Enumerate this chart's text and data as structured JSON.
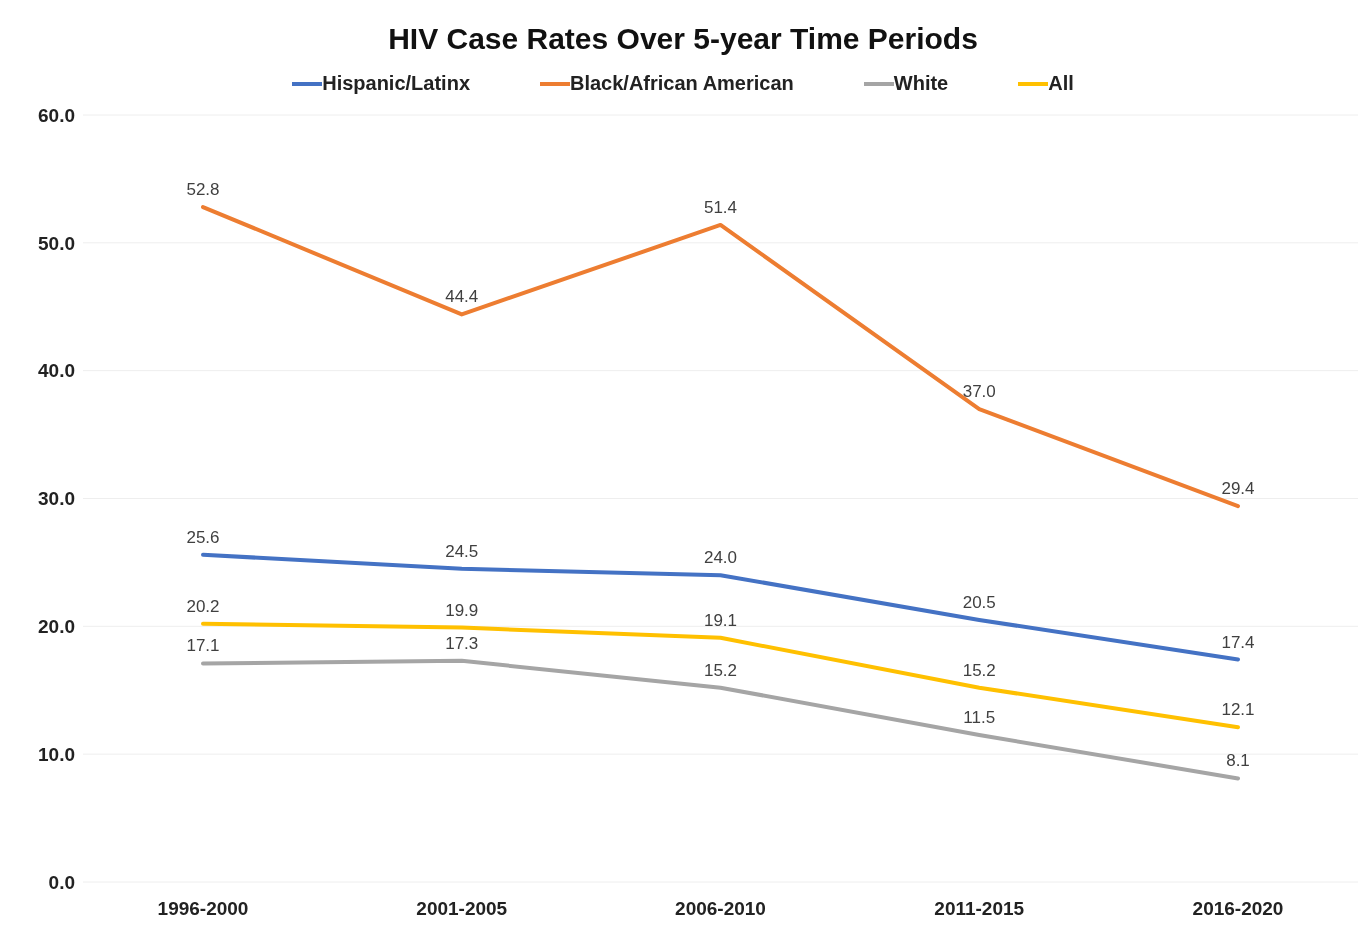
{
  "chart_data": {
    "type": "line",
    "title": "HIV Case Rates Over 5-year Time Periods",
    "categories": [
      "1996-2000",
      "2001-2005",
      "2006-2010",
      "2011-2015",
      "2016-2020"
    ],
    "series": [
      {
        "name": "Hispanic/Latinx",
        "color": "#4472c4",
        "values": [
          25.6,
          24.5,
          24.0,
          20.5,
          17.4
        ],
        "value_labels": [
          "25.6",
          "24.5",
          "24.0",
          "20.5",
          "17.4"
        ]
      },
      {
        "name": "Black/African American",
        "color": "#ed7d31",
        "values": [
          52.8,
          44.4,
          51.4,
          37.0,
          29.4
        ],
        "value_labels": [
          "52.8",
          "44.4",
          "51.4",
          "37.0",
          "29.4"
        ]
      },
      {
        "name": "White",
        "color": "#a5a5a5",
        "values": [
          17.1,
          17.3,
          15.2,
          11.5,
          8.1
        ],
        "value_labels": [
          "17.1",
          "17.3",
          "15.2",
          "11.5",
          "8.1"
        ]
      },
      {
        "name": "All",
        "color": "#ffc000",
        "values": [
          20.2,
          19.9,
          19.1,
          15.2,
          12.1
        ],
        "value_labels": [
          "20.2",
          "19.9",
          "19.1",
          "15.2",
          "12.1"
        ]
      }
    ],
    "ylim": [
      0,
      60
    ],
    "yticks": [
      {
        "value": 0,
        "label": "0.0"
      },
      {
        "value": 10,
        "label": "10.0"
      },
      {
        "value": 20,
        "label": "20.0"
      },
      {
        "value": 30,
        "label": "30.0"
      },
      {
        "value": 40,
        "label": "40.0"
      },
      {
        "value": 50,
        "label": "50.0"
      },
      {
        "value": 60,
        "label": "60.0"
      }
    ],
    "grid": "y",
    "legend": "top"
  }
}
